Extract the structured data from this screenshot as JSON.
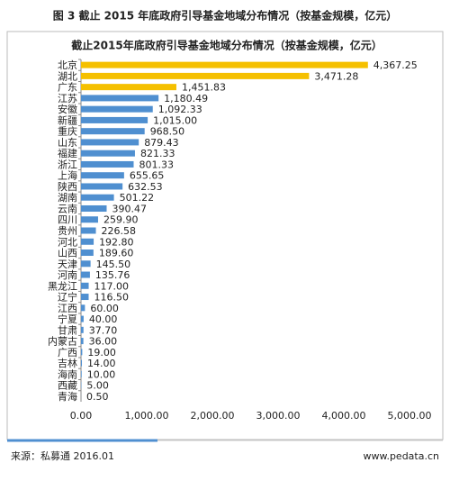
{
  "figure_title": "图 3  截止 2015 年底政府引导基金地域分布情况（按基金规模，亿元）",
  "source": "来源：私募通  2016.01",
  "website": "www.pedata.cn",
  "chart_data": {
    "type": "barh",
    "title": "截止2015年底政府引导基金地域分布情况（按基金规模，亿元）",
    "categories": [
      "北京",
      "湖北",
      "广东",
      "江苏",
      "安徽",
      "新疆",
      "重庆",
      "山东",
      "福建",
      "浙江",
      "上海",
      "陕西",
      "湖南",
      "云南",
      "四川",
      "贵州",
      "河北",
      "山西",
      "天津",
      "河南",
      "黑龙江",
      "辽宁",
      "江西",
      "宁夏",
      "甘肃",
      "内蒙古",
      "广西",
      "吉林",
      "海南",
      "西藏",
      "青海"
    ],
    "values": [
      4367.25,
      3471.28,
      1451.83,
      1180.49,
      1092.33,
      1015.0,
      968.5,
      879.43,
      821.33,
      801.33,
      655.65,
      632.53,
      501.22,
      390.47,
      259.9,
      226.58,
      192.8,
      189.6,
      145.5,
      135.76,
      117.0,
      116.5,
      60.0,
      40.0,
      37.7,
      36.0,
      19.0,
      14.0,
      10.0,
      5.0,
      0.5
    ],
    "value_labels": [
      "4,367.25",
      "3,471.28",
      "1,451.83",
      "1,180.49",
      "1,092.33",
      "1,015.00",
      "968.50",
      "879.43",
      "821.33",
      "801.33",
      "655.65",
      "632.53",
      "501.22",
      "390.47",
      "259.90",
      "226.58",
      "192.80",
      "189.60",
      "145.50",
      "135.76",
      "117.00",
      "116.50",
      "60.00",
      "40.00",
      "37.70",
      "36.00",
      "19.00",
      "14.00",
      "10.00",
      "5.00",
      "0.50"
    ],
    "colors": [
      "#f5c000",
      "#f5c000",
      "#f5c000",
      "#4f8fd0",
      "#4f8fd0",
      "#4f8fd0",
      "#4f8fd0",
      "#4f8fd0",
      "#4f8fd0",
      "#4f8fd0",
      "#4f8fd0",
      "#4f8fd0",
      "#4f8fd0",
      "#4f8fd0",
      "#4f8fd0",
      "#4f8fd0",
      "#4f8fd0",
      "#4f8fd0",
      "#4f8fd0",
      "#4f8fd0",
      "#4f8fd0",
      "#4f8fd0",
      "#4f8fd0",
      "#4f8fd0",
      "#4f8fd0",
      "#4f8fd0",
      "#4f8fd0",
      "#4f8fd0",
      "#4f8fd0",
      "#4f8fd0",
      "#4f8fd0"
    ],
    "xlim": [
      0,
      5000
    ],
    "xticks": [
      {
        "value": 0,
        "label": "0.00"
      },
      {
        "value": 1000,
        "label": "1,000.00"
      },
      {
        "value": 2000,
        "label": "2,000.00"
      },
      {
        "value": 3000,
        "label": "3,000.00"
      },
      {
        "value": 4000,
        "label": "4,000.00"
      },
      {
        "value": 5000,
        "label": "5,000.00"
      }
    ],
    "grid": false
  }
}
